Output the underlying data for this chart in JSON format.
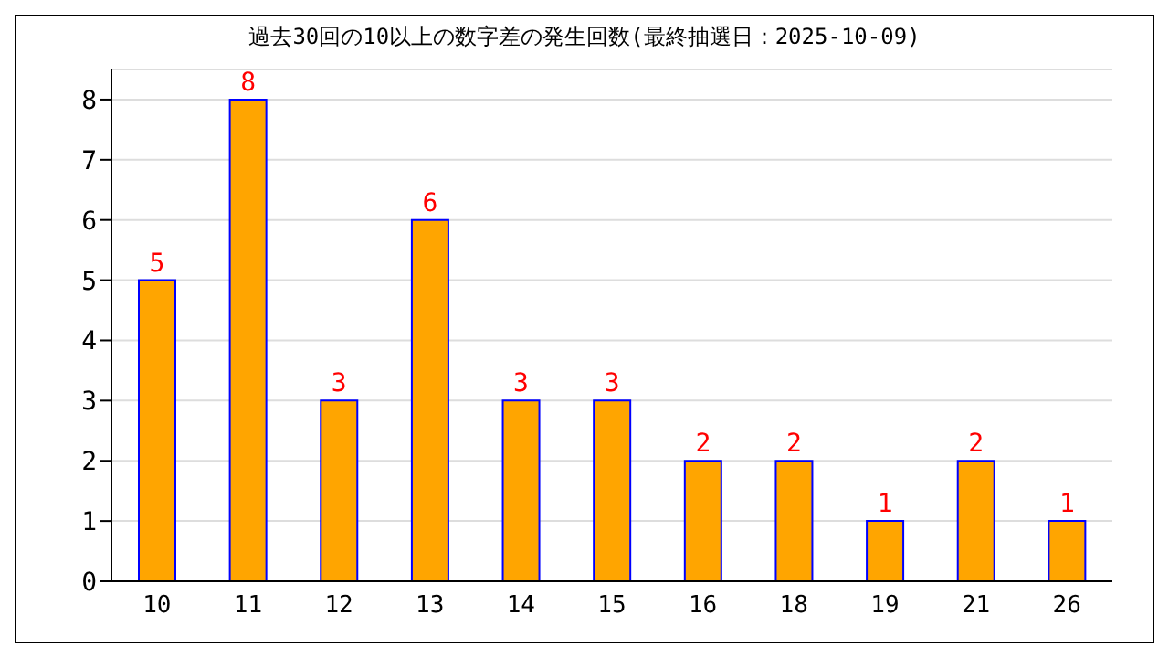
{
  "chart_data": {
    "type": "bar",
    "title": "過去30回の10以上の数字差の発生回数(最終抽選日：2025-10-09)",
    "categories": [
      "10",
      "11",
      "12",
      "13",
      "14",
      "15",
      "16",
      "18",
      "19",
      "21",
      "26"
    ],
    "values": [
      5,
      8,
      3,
      6,
      3,
      3,
      2,
      2,
      1,
      2,
      1
    ],
    "color": "#ffa500",
    "ylim": [
      0,
      8.5
    ],
    "yticks": [
      0,
      1,
      2,
      3,
      4,
      5,
      6,
      7,
      8
    ],
    "grid": "y",
    "data_labels": true
  }
}
